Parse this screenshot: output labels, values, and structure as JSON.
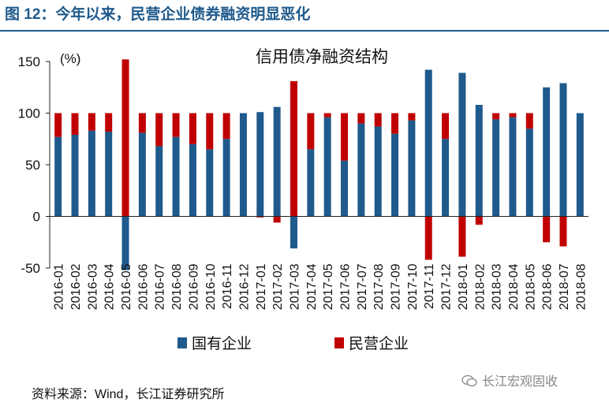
{
  "figure": {
    "title": "图 12：今年以来，民营企业债券融资明显恶化",
    "source": "资料来源：Wind，长江证券研究所",
    "watermark": "长江宏观固收",
    "watermark_icon": "wechat-icon"
  },
  "chart_data": {
    "type": "bar",
    "title": "信用债净融资结构",
    "ylabel": "(%)",
    "xlabel": "",
    "ylim": [
      -50,
      150
    ],
    "yticks": [
      -50,
      0,
      50,
      100,
      150
    ],
    "grid": false,
    "legend_position": "bottom",
    "categories": [
      "2016-01",
      "2016-02",
      "2016-03",
      "2016-04",
      "2016-05",
      "2016-06",
      "2016-07",
      "2016-08",
      "2016-09",
      "2016-10",
      "2016-11",
      "2016-12",
      "2017-01",
      "2017-02",
      "2017-03",
      "2017-04",
      "2017-05",
      "2017-06",
      "2017-07",
      "2017-08",
      "2017-09",
      "2017-10",
      "2017-11",
      "2017-12",
      "2018-01",
      "2018-02",
      "2018-03",
      "2018-04",
      "2018-05",
      "2018-06",
      "2018-07",
      "2018-08"
    ],
    "series": [
      {
        "name": "国有企业",
        "color": "#1f5a8c",
        "values": [
          77,
          79,
          83,
          82,
          -52,
          81,
          68,
          77,
          70,
          65,
          75,
          100,
          101,
          106,
          -31,
          65,
          96,
          54,
          90,
          87,
          80,
          93,
          142,
          75,
          139,
          108,
          94,
          96,
          85,
          125,
          129,
          100
        ]
      },
      {
        "name": "民营企业",
        "color": "#c00000",
        "values": [
          23,
          21,
          17,
          18,
          152,
          19,
          32,
          23,
          30,
          35,
          25,
          0,
          -1,
          -6,
          131,
          35,
          4,
          46,
          10,
          13,
          20,
          7,
          -42,
          25,
          -39,
          -8,
          6,
          4,
          15,
          -25,
          -29,
          0
        ]
      }
    ]
  }
}
